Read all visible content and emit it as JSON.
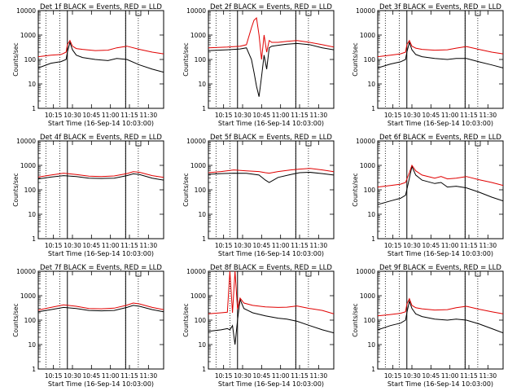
{
  "chart_data": {
    "type": "line",
    "x_range": [
      "10:03:00",
      "11:42:00"
    ],
    "ylim": [
      1,
      10000
    ],
    "y_scale": "log",
    "ylabel": "Counts/sec",
    "xlabel": "Start Time (16-Sep-14 10:03:00)",
    "x_tick_labels": [
      "10:15",
      "10:30",
      "10:45",
      "11:00",
      "11:15",
      "11:30"
    ],
    "x_tick_minutes": [
      12,
      27,
      42,
      57,
      72,
      87
    ],
    "y_tick_labels": [
      "1",
      "10",
      "100",
      "1000",
      "10000"
    ],
    "y_tick_values": [
      1,
      10,
      100,
      1000,
      10000
    ],
    "colors": {
      "events": "#000000",
      "lld": "#e00000"
    },
    "markers": {
      "dotted_minutes": [
        6,
        17,
        69,
        79
      ],
      "solid_minutes": [
        23,
        69
      ]
    },
    "legend_box": true,
    "panels": [
      {
        "title": "Det 1f BLACK = Events, RED = LLD",
        "series": [
          {
            "name": "Events",
            "x": [
              0,
              10,
              18,
              22,
              23,
              25,
              27,
              30,
              35,
              45,
              55,
              62,
              70,
              80,
              90,
              99
            ],
            "y": [
              45,
              70,
              82,
              100,
              200,
              500,
              250,
              150,
              120,
              100,
              90,
              110,
              100,
              60,
              40,
              30
            ]
          },
          {
            "name": "LLD",
            "x": [
              0,
              10,
              18,
              22,
              23,
              25,
              27,
              30,
              35,
              45,
              55,
              62,
              70,
              80,
              90,
              99
            ],
            "y": [
              130,
              150,
              160,
              200,
              400,
              600,
              350,
              280,
              260,
              230,
              240,
              300,
              350,
              260,
              200,
              170
            ]
          }
        ]
      },
      {
        "title": "Det 2f BLACK = Events, RED = LLD",
        "series": [
          {
            "name": "Events",
            "x": [
              0,
              15,
              25,
              30,
              34,
              36,
              38,
              40,
              42,
              44,
              46,
              48,
              50,
              55,
              62,
              70,
              80,
              90,
              99
            ],
            "y": [
              230,
              250,
              270,
              300,
              100,
              30,
              8,
              3,
              20,
              150,
              40,
              300,
              350,
              380,
              420,
              450,
              400,
              300,
              250
            ]
          },
          {
            "name": "LLD",
            "x": [
              0,
              15,
              25,
              30,
              34,
              36,
              38,
              40,
              42,
              44,
              46,
              48,
              50,
              55,
              62,
              70,
              80,
              90,
              99
            ],
            "y": [
              300,
              320,
              350,
              400,
              2000,
              4000,
              5000,
              1000,
              100,
              1000,
              200,
              600,
              500,
              500,
              550,
              600,
              500,
              400,
              320
            ]
          }
        ]
      },
      {
        "title": "Det 3f BLACK = Events, RED = LLD",
        "series": [
          {
            "name": "Events",
            "x": [
              0,
              10,
              18,
              22,
              23,
              25,
              27,
              30,
              35,
              45,
              55,
              62,
              70,
              80,
              90,
              99
            ],
            "y": [
              45,
              65,
              80,
              100,
              200,
              500,
              250,
              160,
              130,
              110,
              100,
              110,
              110,
              80,
              60,
              45
            ]
          },
          {
            "name": "LLD",
            "x": [
              0,
              10,
              18,
              22,
              23,
              25,
              27,
              30,
              35,
              45,
              55,
              62,
              70,
              80,
              90,
              99
            ],
            "y": [
              130,
              150,
              170,
              200,
              400,
              600,
              350,
              290,
              260,
              240,
              250,
              290,
              340,
              260,
              200,
              170
            ]
          }
        ]
      },
      {
        "title": "Det 4f BLACK = Events, RED = LLD",
        "series": [
          {
            "name": "Events",
            "x": [
              0,
              10,
              20,
              30,
              40,
              50,
              60,
              70,
              75,
              80,
              90,
              99
            ],
            "y": [
              280,
              330,
              380,
              350,
              300,
              290,
              300,
              380,
              450,
              420,
              300,
              250
            ]
          },
          {
            "name": "LLD",
            "x": [
              0,
              10,
              20,
              30,
              40,
              50,
              60,
              70,
              75,
              80,
              90,
              99
            ],
            "y": [
              330,
              400,
              480,
              420,
              360,
              350,
              370,
              460,
              550,
              520,
              380,
              320
            ]
          }
        ]
      },
      {
        "title": "Det 5f BLACK = Events, RED = LLD",
        "series": [
          {
            "name": "Events",
            "x": [
              0,
              10,
              20,
              30,
              40,
              45,
              48,
              55,
              65,
              72,
              80,
              90,
              99
            ],
            "y": [
              430,
              460,
              480,
              470,
              400,
              250,
              200,
              320,
              420,
              500,
              520,
              460,
              400
            ]
          },
          {
            "name": "LLD",
            "x": [
              0,
              10,
              20,
              30,
              40,
              45,
              48,
              55,
              65,
              72,
              80,
              90,
              99
            ],
            "y": [
              500,
              560,
              650,
              600,
              560,
              500,
              480,
              560,
              650,
              700,
              750,
              650,
              550
            ]
          }
        ]
      },
      {
        "title": "Det 6f BLACK = Events, RED = LLD",
        "series": [
          {
            "name": "Events",
            "x": [
              0,
              10,
              18,
              22,
              25,
              27,
              30,
              35,
              45,
              50,
              55,
              62,
              70,
              80,
              90,
              99
            ],
            "y": [
              25,
              35,
              45,
              60,
              300,
              900,
              400,
              250,
              180,
              200,
              130,
              140,
              120,
              80,
              50,
              35
            ]
          },
          {
            "name": "LLD",
            "x": [
              0,
              10,
              18,
              22,
              25,
              27,
              30,
              35,
              45,
              50,
              55,
              62,
              70,
              80,
              90,
              99
            ],
            "y": [
              130,
              150,
              170,
              200,
              500,
              1000,
              600,
              400,
              300,
              350,
              280,
              300,
              350,
              260,
              200,
              150
            ]
          }
        ]
      },
      {
        "title": "Det 7f BLACK = Events, RED = LLD",
        "series": [
          {
            "name": "Events",
            "x": [
              0,
              10,
              20,
              30,
              40,
              50,
              60,
              70,
              75,
              80,
              90,
              99
            ],
            "y": [
              220,
              270,
              330,
              300,
              250,
              240,
              250,
              330,
              400,
              370,
              270,
              220
            ]
          },
          {
            "name": "LLD",
            "x": [
              0,
              10,
              20,
              30,
              40,
              50,
              60,
              70,
              75,
              80,
              90,
              99
            ],
            "y": [
              260,
              330,
              420,
              370,
              300,
              290,
              310,
              410,
              500,
              460,
              330,
              270
            ]
          }
        ]
      },
      {
        "title": "Det 8f BLACK = Events, RED = LLD",
        "series": [
          {
            "name": "Events",
            "x": [
              0,
              10,
              15,
              17,
              19,
              21,
              23,
              25,
              28,
              35,
              45,
              55,
              62,
              70,
              80,
              90,
              99
            ],
            "y": [
              35,
              40,
              45,
              40,
              60,
              10,
              100,
              700,
              300,
              200,
              150,
              120,
              110,
              90,
              60,
              40,
              30
            ]
          },
          {
            "name": "LLD",
            "x": [
              0,
              10,
              15,
              17,
              19,
              21,
              23,
              25,
              28,
              35,
              45,
              55,
              62,
              70,
              80,
              90,
              99
            ],
            "y": [
              180,
              200,
              210,
              10000,
              200,
              10000,
              280,
              800,
              500,
              400,
              350,
              330,
              340,
              380,
              300,
              250,
              180
            ]
          }
        ]
      },
      {
        "title": "Det 9f BLACK = Events, RED = LLD",
        "series": [
          {
            "name": "Events",
            "x": [
              0,
              10,
              18,
              22,
              23,
              25,
              27,
              30,
              35,
              45,
              55,
              62,
              70,
              80,
              90,
              99
            ],
            "y": [
              40,
              60,
              75,
              100,
              200,
              600,
              300,
              180,
              140,
              110,
              100,
              110,
              100,
              70,
              45,
              30
            ]
          },
          {
            "name": "LLD",
            "x": [
              0,
              10,
              18,
              22,
              23,
              25,
              27,
              30,
              35,
              45,
              55,
              62,
              70,
              80,
              90,
              99
            ],
            "y": [
              150,
              170,
              190,
              220,
              450,
              750,
              400,
              320,
              290,
              260,
              270,
              320,
              370,
              280,
              220,
              180
            ]
          }
        ]
      }
    ]
  }
}
